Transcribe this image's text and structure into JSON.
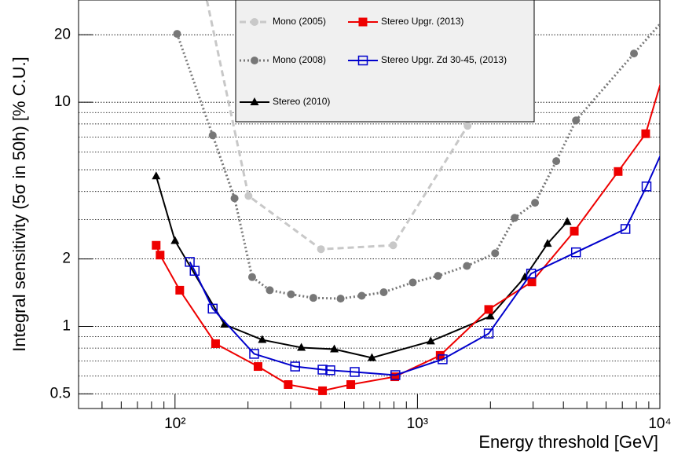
{
  "chart_data": {
    "type": "line",
    "xlabel": "Energy threshold [GeV]",
    "ylabel": "Integral sensitivity (5σ in 50h) [% C.U.]",
    "xscale": "log",
    "yscale": "log",
    "xlim": [
      40,
      10000
    ],
    "ylim": [
      0.43,
      28.6
    ],
    "xticks": [
      {
        "value": 100,
        "label": "10²"
      },
      {
        "value": 1000,
        "label": "10³"
      },
      {
        "value": 10000,
        "label": "10⁴"
      }
    ],
    "xminor": [
      40,
      50,
      60,
      70,
      80,
      90,
      200,
      300,
      400,
      500,
      600,
      700,
      800,
      900,
      2000,
      3000,
      4000,
      5000,
      6000,
      7000,
      8000,
      9000
    ],
    "yticks": [
      0.5,
      1,
      2,
      10,
      20
    ],
    "ygrid": [
      0.5,
      0.6,
      0.7,
      0.8,
      0.9,
      1,
      2,
      3,
      4,
      5,
      6,
      7,
      8,
      9,
      10,
      20
    ],
    "grid": true,
    "legend": "top",
    "series": [
      {
        "name": "Mono (2005)",
        "color": "#c8c8c8",
        "line": "dashed",
        "marker": "circle",
        "x": [
          130,
          201,
          400,
          794,
          1610,
          3000
        ],
        "values": [
          35,
          3.82,
          2.21,
          2.3,
          7.85,
          40
        ]
      },
      {
        "name": "Mono (2008)",
        "color": "#777777",
        "line": "dotted",
        "marker": "circle",
        "x": [
          102,
          143,
          176,
          208,
          246,
          301,
          372,
          482,
          589,
          726,
          957,
          1215,
          1600,
          2091,
          2518,
          3055,
          3738,
          4508,
          7820,
          11000
        ],
        "values": [
          20.2,
          7.12,
          3.73,
          1.66,
          1.45,
          1.39,
          1.34,
          1.33,
          1.37,
          1.42,
          1.57,
          1.68,
          1.86,
          2.12,
          3.05,
          3.56,
          5.46,
          8.3,
          16.5,
          25.1
        ]
      },
      {
        "name": "Stereo (2010)",
        "color": "#000000",
        "line": "solid",
        "marker": "triangle",
        "x": [
          83.6,
          100,
          160,
          229,
          332,
          454,
          649,
          1135,
          2000,
          2775,
          3443,
          4150
        ],
        "values": [
          4.68,
          2.41,
          1.02,
          0.871,
          0.804,
          0.791,
          0.724,
          0.858,
          1.11,
          1.66,
          2.34,
          2.93
        ]
      },
      {
        "name": "Stereo Upgr. (2013)",
        "color": "#ee0000",
        "line": "solid",
        "marker": "square",
        "x": [
          83.6,
          86.8,
          104.6,
          147,
          220,
          293,
          406,
          531,
          806,
          1241,
          1967,
          2965,
          4436,
          6730,
          8740,
          11000
        ],
        "values": [
          2.3,
          2.08,
          1.45,
          0.837,
          0.662,
          0.55,
          0.516,
          0.55,
          0.596,
          0.742,
          1.19,
          1.58,
          2.66,
          4.91,
          7.24,
          16.8
        ]
      },
      {
        "name": "Stereo Upgr. Zd 30-45, (2013)",
        "color": "#0000cc",
        "line": "solid",
        "marker": "open-square",
        "x": [
          115,
          120.5,
          143,
          212,
          313,
          406,
          437,
          551,
          811,
          1270,
          1967,
          2945,
          4508,
          7210,
          8810,
          11000
        ],
        "values": [
          1.94,
          1.77,
          1.2,
          0.754,
          0.662,
          0.641,
          0.637,
          0.626,
          0.606,
          0.713,
          0.929,
          1.72,
          2.14,
          2.72,
          4.21,
          7.2
        ]
      }
    ]
  }
}
